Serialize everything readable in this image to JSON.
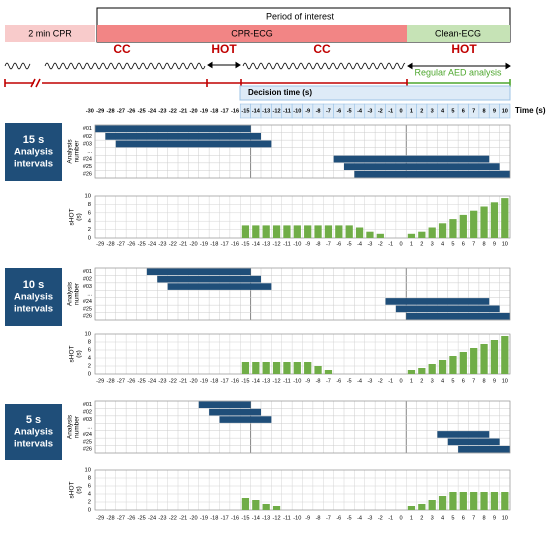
{
  "header": {
    "pre_label": "2 min CPR",
    "period_label": "Period of interest",
    "cpr_ecg": "CPR-ECG",
    "clean_ecg": "Clean-ECG",
    "phases": [
      "CC",
      "HOT",
      "CC",
      "HOT"
    ],
    "aed_label": "Regular AED analysis",
    "decision_label": "Decision time (s)",
    "time_label": "Time (s)",
    "decision_ticks": [
      -30,
      -29,
      -28,
      -27,
      -26,
      -25,
      -24,
      -23,
      -22,
      -21,
      -20,
      -19,
      -18,
      -17,
      -16,
      -15,
      -14,
      -13,
      -12,
      -11,
      -10,
      -9,
      -8,
      -7,
      -6,
      -5,
      -4,
      -3,
      -2,
      -1,
      0,
      1,
      2,
      3,
      4,
      5,
      6,
      7,
      8,
      9,
      10
    ]
  },
  "chart_data": [
    {
      "type": "bar",
      "panel_label": [
        "15 s",
        "Analysis",
        "intervals"
      ],
      "analysis_label": [
        "Analysis",
        "number"
      ],
      "analysis_rows": [
        "#01",
        "#02",
        "#03",
        "...",
        "#24",
        "#25",
        "#26"
      ],
      "analysis_intervals": [
        [
          -30,
          -15
        ],
        [
          -29,
          -14
        ],
        [
          -28,
          -13
        ],
        null,
        [
          -7,
          8
        ],
        [
          -6,
          9
        ],
        [
          -5,
          10
        ]
      ],
      "y_label": [
        "sHOT",
        "(s)"
      ],
      "x": [
        -29,
        -28,
        -27,
        -26,
        -25,
        -24,
        -23,
        -22,
        -21,
        -20,
        -19,
        -18,
        -17,
        -16,
        -15,
        -14,
        -13,
        -12,
        -11,
        -10,
        -9,
        -8,
        -7,
        -6,
        -5,
        -4,
        -3,
        -2,
        -1,
        0,
        1,
        2,
        3,
        4,
        5,
        6,
        7,
        8,
        9,
        10
      ],
      "values": [
        0,
        0,
        0,
        0,
        0,
        0,
        0,
        0,
        0,
        0,
        0,
        0,
        0,
        0,
        3,
        3,
        3,
        3,
        3,
        3,
        3,
        3,
        3,
        3,
        3,
        2.5,
        1.5,
        1,
        0,
        0,
        1,
        1.5,
        2.5,
        3.5,
        4.5,
        5.5,
        6.5,
        7.5,
        8.5,
        9.5
      ],
      "ylim": [
        0,
        10
      ],
      "yticks": [
        0,
        2,
        4,
        6,
        8,
        10
      ],
      "color": "#70ad47",
      "interval_color": "#1f4e79"
    },
    {
      "type": "bar",
      "panel_label": [
        "10 s",
        "Analysis",
        "intervals"
      ],
      "analysis_label": [
        "Analysis",
        "number"
      ],
      "analysis_rows": [
        "#01",
        "#02",
        "#03",
        "...",
        "#24",
        "#25",
        "#26"
      ],
      "analysis_intervals": [
        [
          -25,
          -15
        ],
        [
          -24,
          -14
        ],
        [
          -23,
          -13
        ],
        null,
        [
          -2,
          8
        ],
        [
          -1,
          9
        ],
        [
          0,
          10
        ]
      ],
      "y_label": [
        "sHOT",
        "(s)"
      ],
      "x": [
        -29,
        -28,
        -27,
        -26,
        -25,
        -24,
        -23,
        -22,
        -21,
        -20,
        -19,
        -18,
        -17,
        -16,
        -15,
        -14,
        -13,
        -12,
        -11,
        -10,
        -9,
        -8,
        -7,
        -6,
        -5,
        -4,
        -3,
        -2,
        -1,
        0,
        1,
        2,
        3,
        4,
        5,
        6,
        7,
        8,
        9,
        10
      ],
      "values": [
        0,
        0,
        0,
        0,
        0,
        0,
        0,
        0,
        0,
        0,
        0,
        0,
        0,
        0,
        3,
        3,
        3,
        3,
        3,
        3,
        3,
        2,
        1,
        0,
        0,
        0,
        0,
        0,
        0,
        0,
        1,
        1.5,
        2.5,
        3.5,
        4.5,
        5.5,
        6.5,
        7.5,
        8.5,
        9.5
      ],
      "ylim": [
        0,
        10
      ],
      "yticks": [
        0,
        2,
        4,
        6,
        8,
        10
      ],
      "color": "#70ad47",
      "interval_color": "#1f4e79"
    },
    {
      "type": "bar",
      "panel_label": [
        "5 s",
        "Analysis",
        "intervals"
      ],
      "analysis_label": [
        "Analysis",
        "number"
      ],
      "analysis_rows": [
        "#01",
        "#02",
        "#03",
        "...",
        "#24",
        "#25",
        "#26"
      ],
      "analysis_intervals": [
        [
          -20,
          -15
        ],
        [
          -19,
          -14
        ],
        [
          -18,
          -13
        ],
        null,
        [
          3,
          8
        ],
        [
          4,
          9
        ],
        [
          5,
          10
        ]
      ],
      "y_label": [
        "sHOT",
        "(s)"
      ],
      "x": [
        -29,
        -28,
        -27,
        -26,
        -25,
        -24,
        -23,
        -22,
        -21,
        -20,
        -19,
        -18,
        -17,
        -16,
        -15,
        -14,
        -13,
        -12,
        -11,
        -10,
        -9,
        -8,
        -7,
        -6,
        -5,
        -4,
        -3,
        -2,
        -1,
        0,
        1,
        2,
        3,
        4,
        5,
        6,
        7,
        8,
        9,
        10
      ],
      "values": [
        0,
        0,
        0,
        0,
        0,
        0,
        0,
        0,
        0,
        0,
        0,
        0,
        0,
        0,
        3,
        2.5,
        1.5,
        1,
        0,
        0,
        0,
        0,
        0,
        0,
        0,
        0,
        0,
        0,
        0,
        0,
        1,
        1.5,
        2.5,
        3.5,
        4.5,
        4.5,
        4.5,
        4.5,
        4.5,
        4.5
      ],
      "ylim": [
        0,
        10
      ],
      "yticks": [
        0,
        2,
        4,
        6,
        8,
        10
      ],
      "color": "#70ad47",
      "interval_color": "#1f4e79"
    }
  ]
}
